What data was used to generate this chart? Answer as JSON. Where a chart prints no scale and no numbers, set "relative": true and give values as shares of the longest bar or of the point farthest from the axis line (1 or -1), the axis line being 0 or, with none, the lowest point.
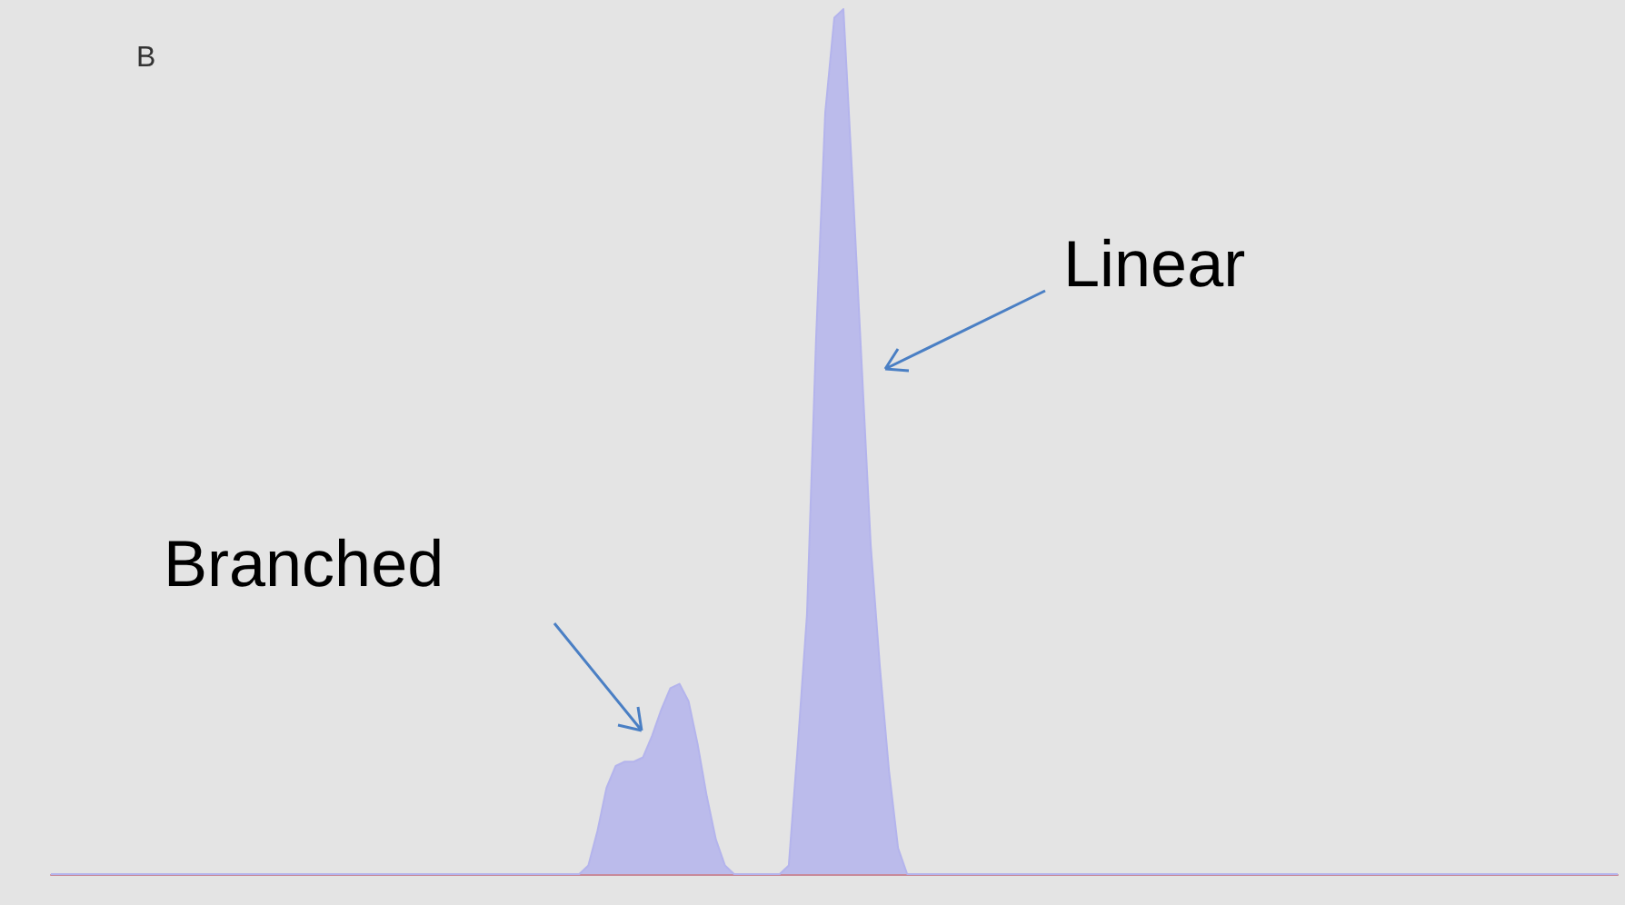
{
  "chart_data": {
    "type": "area",
    "relative": true,
    "annotations": [
      "B",
      "Branched",
      "Linear"
    ],
    "categories": [
      null,
      null,
      null,
      null,
      null,
      null,
      null,
      null,
      null,
      null,
      null,
      null,
      null,
      null,
      null,
      null,
      null,
      null,
      null,
      null,
      null,
      null,
      null,
      null,
      null,
      null,
      null,
      null,
      null,
      null,
      null,
      null,
      null,
      null,
      null,
      null,
      null,
      null,
      null,
      null,
      null,
      null,
      null,
      null,
      null,
      null,
      null,
      null,
      null,
      null,
      null,
      null,
      null,
      null,
      null,
      null,
      null,
      null,
      null,
      null,
      null,
      null,
      null,
      null,
      null,
      null,
      null,
      null,
      null,
      null,
      null,
      null,
      null,
      null,
      null,
      null,
      null,
      null,
      null,
      null,
      null,
      null,
      null,
      null,
      null,
      null,
      null,
      null,
      null,
      null,
      null,
      null,
      null,
      null,
      null,
      null,
      null,
      null,
      null,
      null,
      null,
      null,
      null,
      null,
      null,
      null,
      null,
      null,
      null,
      null,
      null,
      null,
      null,
      null,
      null,
      null,
      null,
      null,
      null,
      null,
      null,
      null,
      null,
      null,
      null,
      null,
      null,
      null,
      null,
      null,
      null,
      null,
      null,
      null,
      null,
      null,
      null,
      null,
      null,
      null,
      null,
      null,
      null,
      null,
      null,
      null,
      null,
      null,
      null,
      null,
      null,
      null,
      null,
      null,
      null,
      null,
      null,
      null,
      null,
      null,
      null,
      null,
      null,
      null,
      null,
      null,
      null,
      null,
      null,
      null,
      null,
      null,
      null
    ],
    "series": [
      {
        "color": "#b4b4ec",
        "values": [
          0,
          0,
          0,
          0,
          0,
          0,
          0,
          0,
          0,
          0,
          0,
          0,
          0,
          0,
          0,
          0,
          0,
          0,
          0,
          0,
          0,
          0,
          0,
          0,
          0,
          0,
          0,
          0,
          0,
          0,
          0,
          0,
          0,
          0,
          0,
          0,
          0,
          0,
          0,
          0,
          0,
          0,
          0,
          0,
          0,
          0,
          0,
          0,
          0,
          0,
          0,
          0,
          0,
          0,
          0,
          0,
          0,
          0,
          0,
          0.01,
          0.05,
          0.1,
          0.125,
          0.13,
          0.13,
          0.135,
          0.16,
          0.19,
          0.215,
          0.22,
          0.2,
          0.15,
          0.09,
          0.04,
          0.01,
          0,
          0,
          0,
          0,
          0,
          0,
          0.01,
          0.15,
          0.3,
          0.62,
          0.88,
          0.99,
          1,
          0.8,
          0.59,
          0.38,
          0.24,
          0.12,
          0.03,
          0,
          0,
          0,
          0,
          0,
          0,
          0,
          0,
          0,
          0,
          0,
          0,
          0,
          0,
          0,
          0,
          0,
          0,
          0,
          0,
          0,
          0,
          0,
          0,
          0,
          0,
          0,
          0,
          0,
          0,
          0,
          0,
          0,
          0,
          0,
          0,
          0,
          0,
          0,
          0,
          0,
          0,
          0,
          0,
          0,
          0,
          0,
          0,
          0,
          0,
          0,
          0,
          0,
          0,
          0,
          0,
          0,
          0,
          0,
          0,
          0,
          0,
          0,
          0,
          0,
          0,
          0,
          0,
          0,
          0,
          0,
          0,
          0,
          0,
          0,
          0,
          0,
          0,
          0
        ]
      }
    ]
  }
}
